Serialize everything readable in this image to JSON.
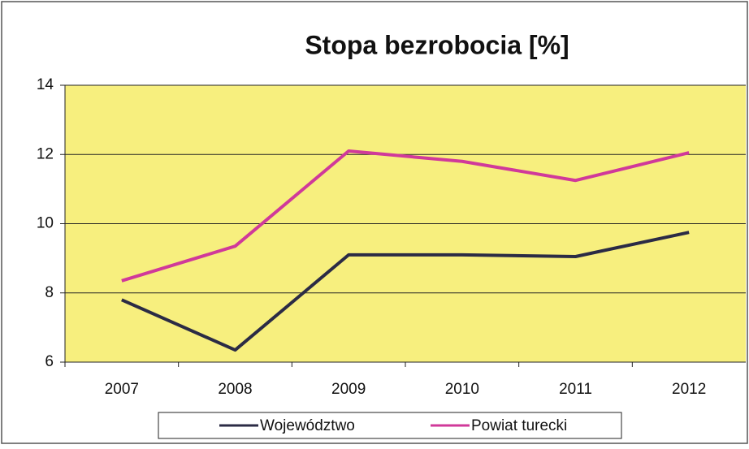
{
  "chart_data": {
    "type": "line",
    "title": "Stopa bezrobocia [%]",
    "categories": [
      "2007",
      "2008",
      "2009",
      "2010",
      "2011",
      "2012"
    ],
    "series": [
      {
        "name": "Województwo",
        "color": "#2b2b45",
        "values": [
          7.8,
          6.35,
          9.1,
          9.1,
          9.05,
          9.75
        ]
      },
      {
        "name": "Powiat turecki",
        "color": "#d0399a",
        "values": [
          8.35,
          9.35,
          12.1,
          11.8,
          11.25,
          12.05
        ]
      }
    ],
    "ylim": [
      6,
      14
    ],
    "yticks": [
      6,
      8,
      10,
      12,
      14
    ],
    "grid": true,
    "legend": "bottom"
  }
}
